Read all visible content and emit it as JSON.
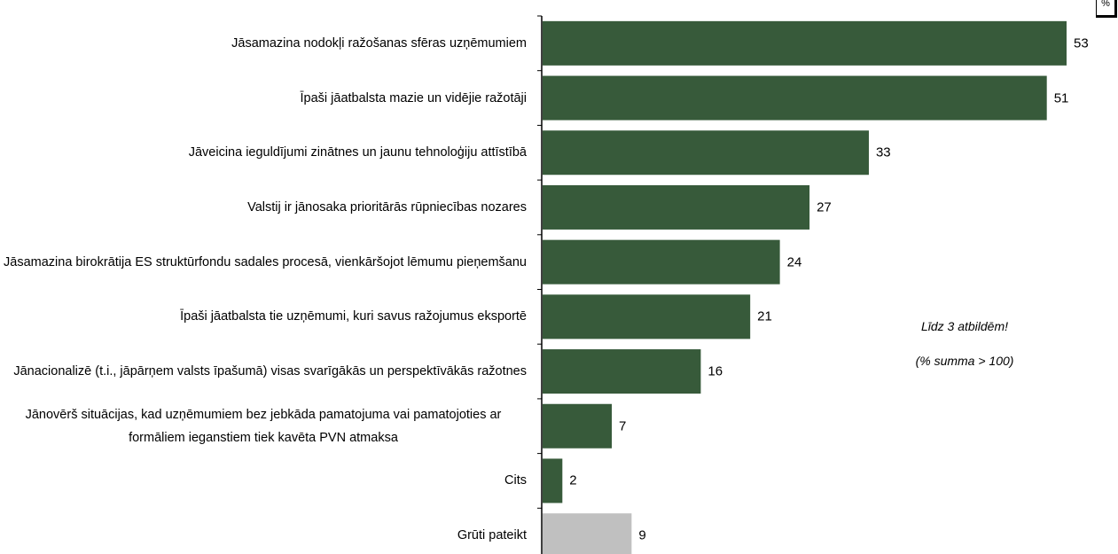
{
  "chart_data": {
    "type": "bar",
    "orientation": "horizontal",
    "categories": [
      "Jāsamazina nodokļi ražošanas sfēras uzņēmumiem",
      "Īpaši jāatbalsta mazie un vidējie ražotāji",
      "Jāveicina ieguldījumi zinātnes un jaunu tehnoloģiju attīstībā",
      "Valstij ir jānosaka prioritārās rūpniecības nozares",
      "Jāsamazina birokrātija ES struktūrfondu sadales procesā, vienkāršojot lēmumu pieņemšanu",
      "Īpaši jāatbalsta tie uzņēmumi, kuri savus ražojumus eksportē",
      "Jānacionalizē (t.i., jāpārņem valsts īpašumā) visas svarīgākās un perspektīvākās ražotnes",
      "Jānovērš situācijas, kad uzņēmumiem bez jebkāda pamatojuma vai pamatojoties ar formāliem ieganstiem tiek kavēta PVN atmaksa",
      "Cits",
      "Grūti pateikt"
    ],
    "values": [
      53,
      51,
      33,
      27,
      24,
      21,
      16,
      7,
      2,
      9
    ],
    "colors": [
      "#375a3a",
      "#375a3a",
      "#375a3a",
      "#375a3a",
      "#375a3a",
      "#375a3a",
      "#375a3a",
      "#375a3a",
      "#375a3a",
      "#c0c0c0"
    ],
    "annotations": [
      "Līdz 3 atbildēm!",
      "(% summa > 100)"
    ],
    "unit_label": "%"
  }
}
